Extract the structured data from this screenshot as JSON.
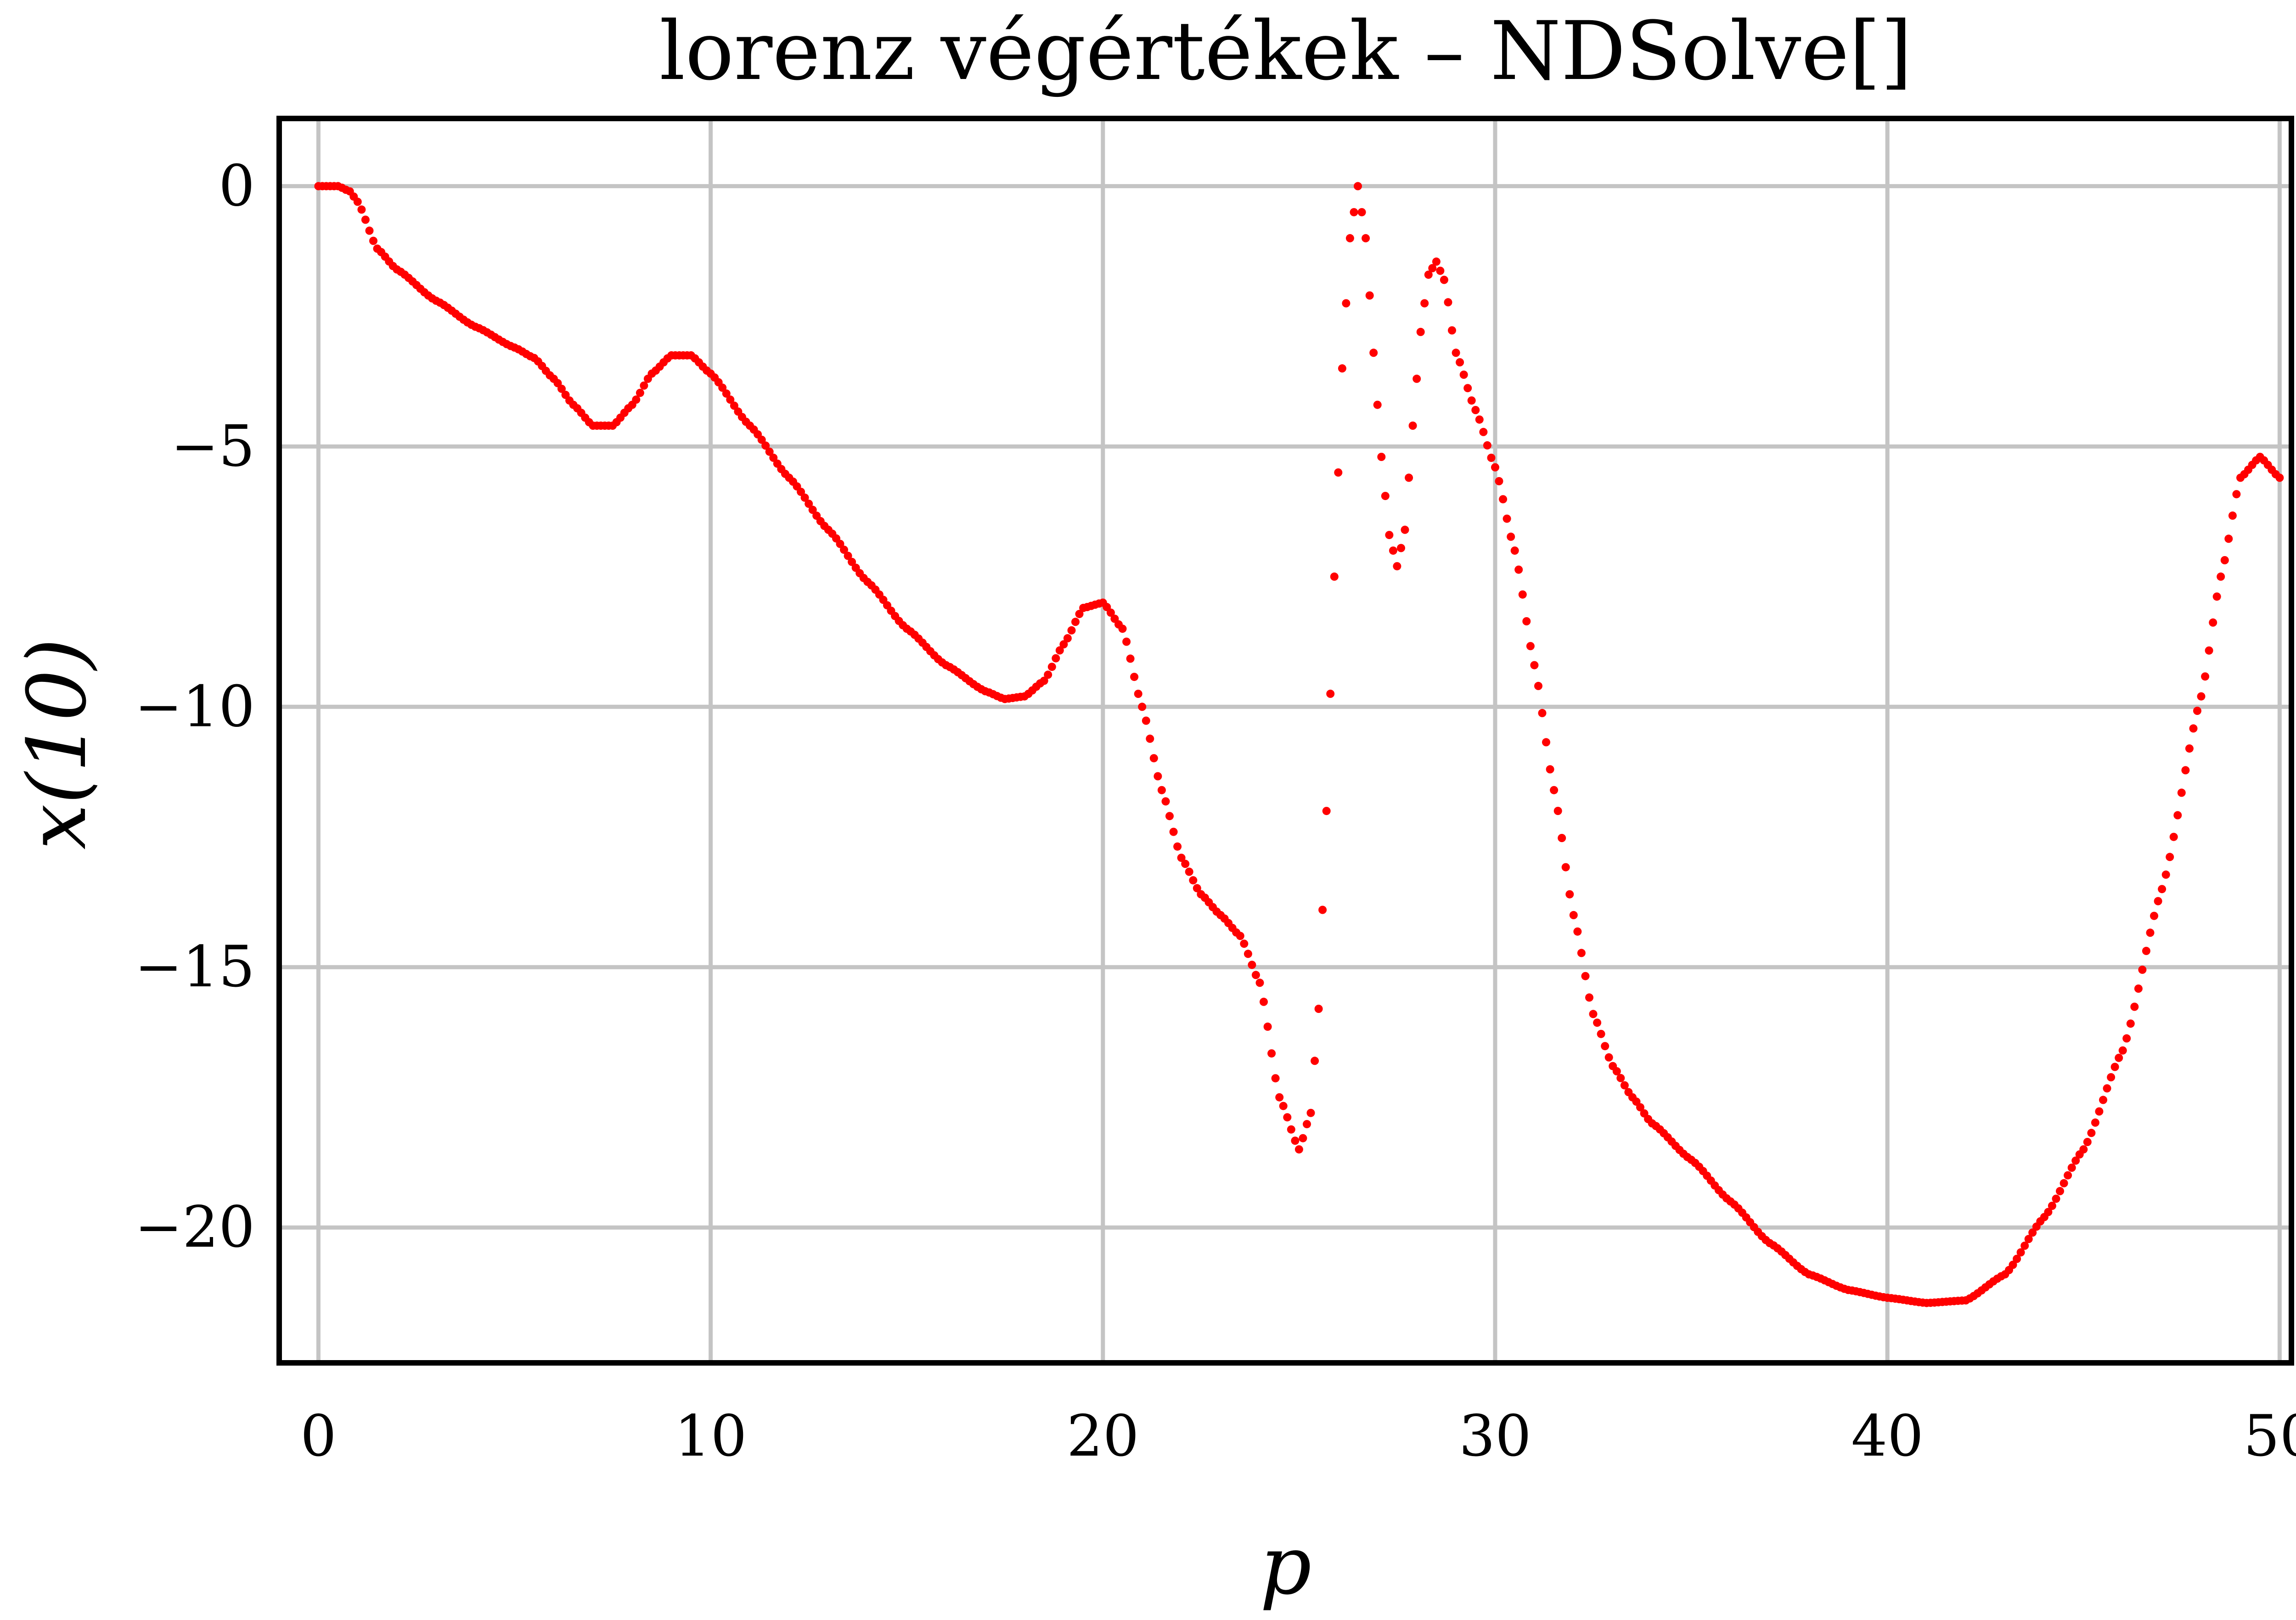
{
  "chart_data": {
    "type": "scatter",
    "title": "lorenz végértékek – NDSolve[]",
    "xlabel": "p",
    "ylabel": "x(10)",
    "xlim": [
      -1,
      50.3
    ],
    "ylim": [
      -22.6,
      1.3
    ],
    "x_ticks": [
      0,
      10,
      20,
      30,
      40,
      50
    ],
    "y_ticks": [
      0,
      -5,
      -10,
      -15,
      -20
    ],
    "x_tick_labels": [
      "0",
      "10",
      "20",
      "30",
      "40",
      "50"
    ],
    "y_tick_labels": [
      "0",
      "−5",
      "−10",
      "−15",
      "−20"
    ],
    "grid": true,
    "legend": "none",
    "marker_color": "#ff0000",
    "grid_color": "#c4c4c4",
    "frame_color": "#000000",
    "p_step": 0.1,
    "x_range": [
      0,
      50
    ],
    "series": [
      {
        "key_points": [
          [
            0,
            0
          ],
          [
            0.5,
            0
          ],
          [
            0.8,
            -0.1
          ],
          [
            1,
            -0.3
          ],
          [
            1.5,
            -1.2
          ],
          [
            2,
            -1.6
          ],
          [
            3,
            -2.2
          ],
          [
            4,
            -2.7
          ],
          [
            5,
            -3.1
          ],
          [
            5.5,
            -3.3
          ],
          [
            6,
            -3.7
          ],
          [
            6.5,
            -4.2
          ],
          [
            7,
            -4.6
          ],
          [
            7.5,
            -4.6
          ],
          [
            8,
            -4.2
          ],
          [
            8.5,
            -3.6
          ],
          [
            9,
            -3.25
          ],
          [
            9.5,
            -3.25
          ],
          [
            10,
            -3.6
          ],
          [
            11,
            -4.6
          ],
          [
            12,
            -5.6
          ],
          [
            13,
            -6.6
          ],
          [
            14,
            -7.6
          ],
          [
            15,
            -8.5
          ],
          [
            16,
            -9.2
          ],
          [
            17,
            -9.7
          ],
          [
            17.5,
            -9.85
          ],
          [
            18,
            -9.8
          ],
          [
            18.5,
            -9.5
          ],
          [
            19,
            -8.8
          ],
          [
            19.5,
            -8.1
          ],
          [
            20,
            -8.0
          ],
          [
            20.5,
            -8.5
          ],
          [
            21,
            -10.0
          ],
          [
            21.5,
            -11.6
          ],
          [
            22,
            -12.9
          ],
          [
            22.5,
            -13.6
          ],
          [
            23,
            -14.0
          ],
          [
            23.5,
            -14.4
          ],
          [
            24,
            -15.3
          ],
          [
            24.5,
            -17.5
          ],
          [
            25,
            -18.5
          ],
          [
            25.3,
            -17.8
          ],
          [
            25.5,
            -15.8
          ],
          [
            25.7,
            -12.0
          ],
          [
            25.9,
            -7.5
          ],
          [
            26.1,
            -3.5
          ],
          [
            26.3,
            -1.0
          ],
          [
            26.5,
            0
          ],
          [
            26.7,
            -1.0
          ],
          [
            26.9,
            -3.2
          ],
          [
            27.1,
            -5.2
          ],
          [
            27.3,
            -6.7
          ],
          [
            27.5,
            -7.3
          ],
          [
            27.7,
            -6.6
          ],
          [
            27.9,
            -4.6
          ],
          [
            28.1,
            -2.8
          ],
          [
            28.3,
            -1.7
          ],
          [
            28.5,
            -1.45
          ],
          [
            28.7,
            -1.8
          ],
          [
            29,
            -3.2
          ],
          [
            29.5,
            -4.3
          ],
          [
            30,
            -5.4
          ],
          [
            30.5,
            -7.0
          ],
          [
            31,
            -9.2
          ],
          [
            31.5,
            -11.6
          ],
          [
            32,
            -14.0
          ],
          [
            32.5,
            -15.9
          ],
          [
            33,
            -16.9
          ],
          [
            33.5,
            -17.5
          ],
          [
            34,
            -18.0
          ],
          [
            35,
            -18.7
          ],
          [
            36,
            -19.5
          ],
          [
            37,
            -20.3
          ],
          [
            38,
            -20.9
          ],
          [
            39,
            -21.2
          ],
          [
            40,
            -21.35
          ],
          [
            41,
            -21.45
          ],
          [
            42,
            -21.4
          ],
          [
            43,
            -20.9
          ],
          [
            44,
            -19.8
          ],
          [
            45,
            -18.5
          ],
          [
            46,
            -16.6
          ],
          [
            47,
            -13.5
          ],
          [
            48,
            -9.8
          ],
          [
            48.5,
            -7.5
          ],
          [
            49,
            -5.6
          ],
          [
            49.5,
            -5.2
          ],
          [
            50,
            -5.6
          ]
        ]
      }
    ]
  }
}
